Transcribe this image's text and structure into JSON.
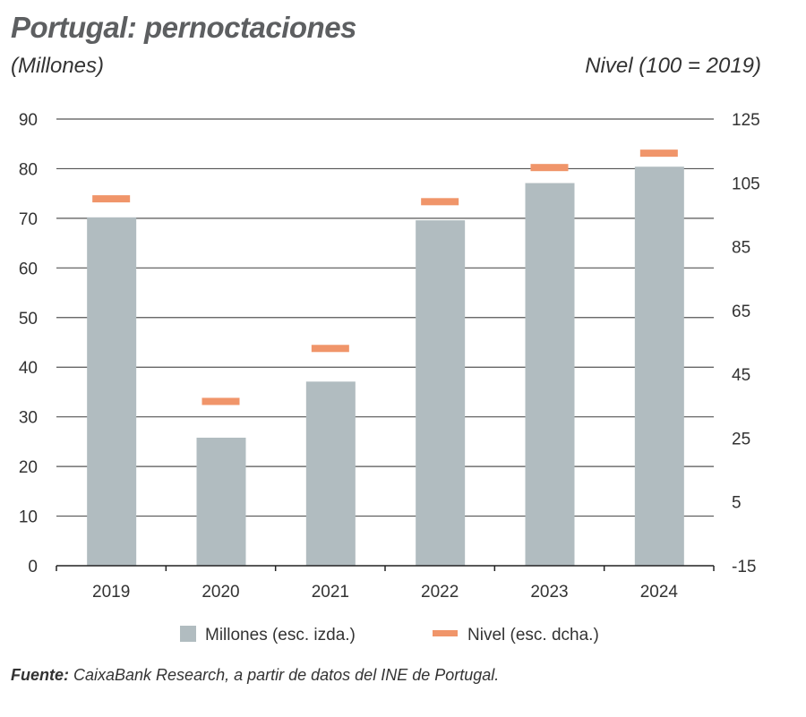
{
  "chart_data": {
    "type": "bar",
    "title": "Portugal: pernoctaciones",
    "ylabel": "(Millones)",
    "y2label": "Nivel (100 = 2019)",
    "categories": [
      "2019",
      "2020",
      "2021",
      "2022",
      "2023",
      "2024"
    ],
    "series": [
      {
        "name": "Millones (esc. izda.)",
        "type": "bar",
        "axis": "left",
        "values": [
          70.2,
          25.8,
          37.1,
          69.6,
          77.1,
          80.4
        ],
        "color": "#b1bcc0"
      },
      {
        "name": "Nivel (esc. dcha.)",
        "type": "marker",
        "axis": "right",
        "values": [
          100,
          36.5,
          53.1,
          99.1,
          109.8,
          114.3
        ],
        "color": "#f0956a"
      }
    ],
    "ylim": [
      0,
      90
    ],
    "yticks": [
      0,
      10,
      20,
      30,
      40,
      50,
      60,
      70,
      80,
      90
    ],
    "y2lim": [
      -15,
      125
    ],
    "y2ticks": [
      -15,
      5,
      25,
      45,
      65,
      85,
      105,
      125
    ],
    "grid": true,
    "legend": "bottom"
  },
  "source": {
    "label": "Fuente:",
    "text": " CaixaBank Research, a partir de datos del INE de Portugal."
  }
}
